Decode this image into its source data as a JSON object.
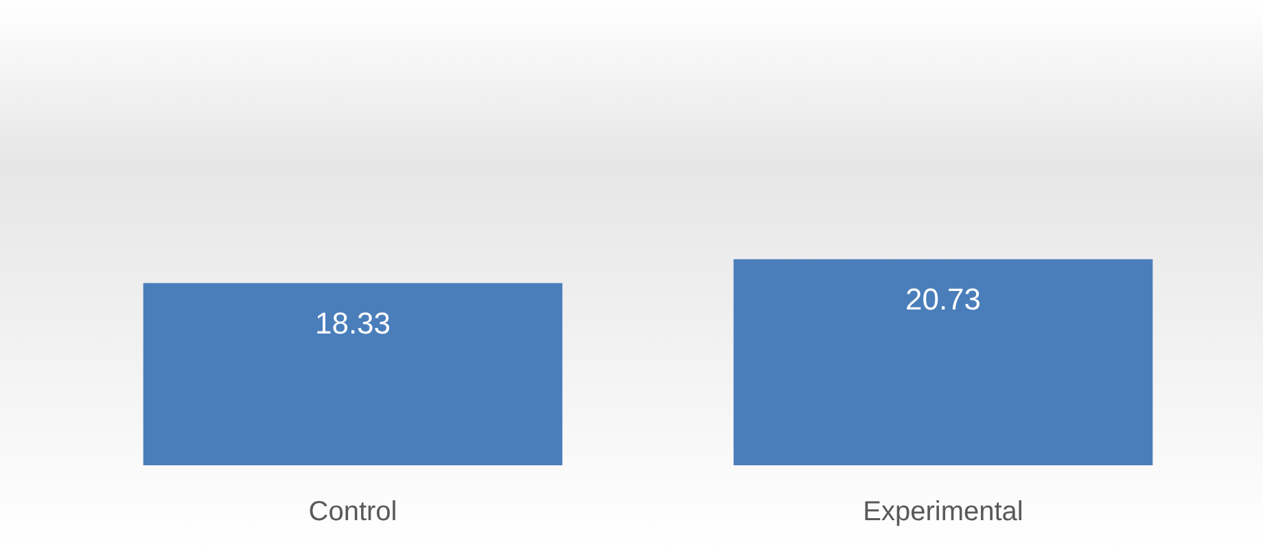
{
  "chart_data": {
    "type": "bar",
    "categories": [
      "Control",
      "Experimental"
    ],
    "values": [
      18.33,
      20.73
    ],
    "color": "#4a7ebb",
    "data_labels": true
  }
}
